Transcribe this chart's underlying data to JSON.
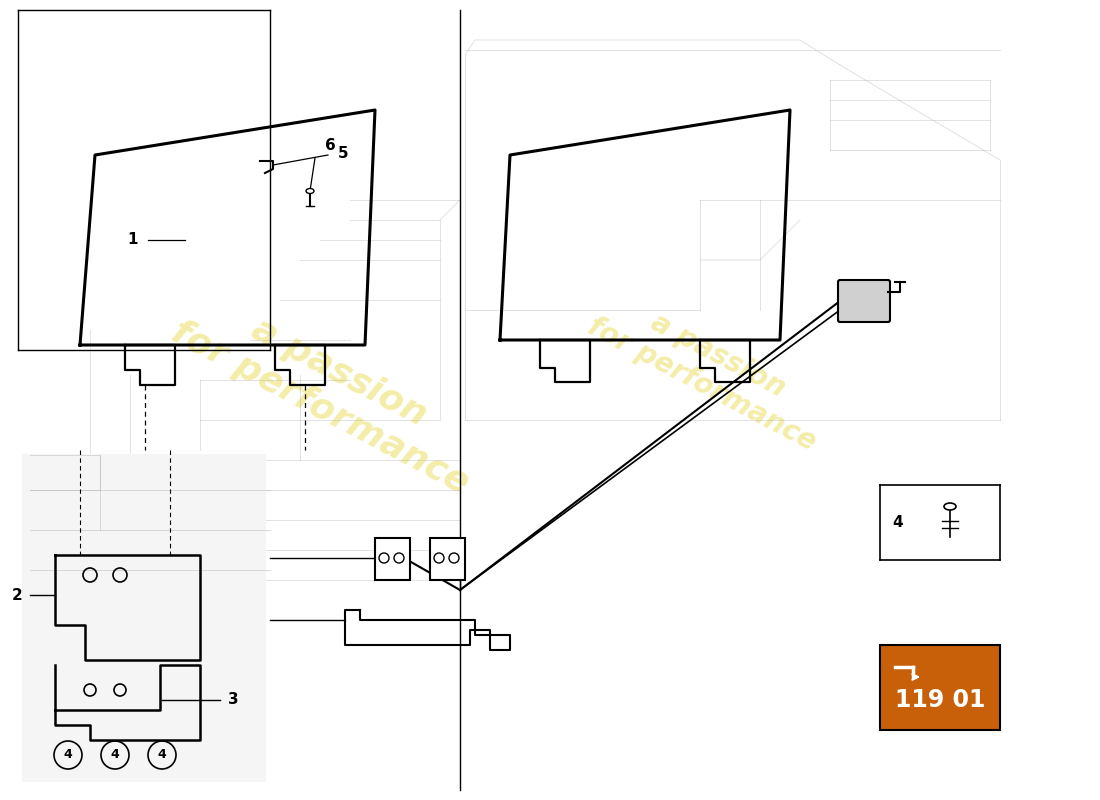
{
  "background_color": "#ffffff",
  "part_number_box": "119 01",
  "part_number_box_color": "#c8600a",
  "watermark_text1": "a passion\nfor performance",
  "watermark_text2": "a passion\nfor performance",
  "watermark_color": "#e8d840",
  "watermark_alpha": 0.45,
  "divider_color": "#000000",
  "label_fontsize": 11,
  "part_labels": [
    "1",
    "2",
    "3",
    "4",
    "5",
    "6"
  ],
  "part_num_text": "119 01"
}
